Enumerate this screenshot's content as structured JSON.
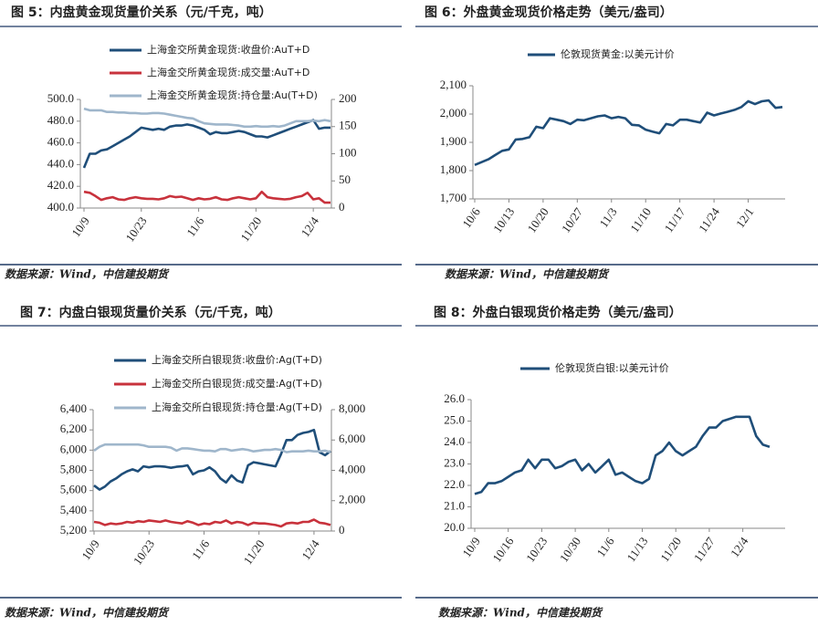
{
  "chart_data": [
    {
      "type": "line",
      "title": "图 5：内盘黄金现货量价关系（元/千克，吨）",
      "source": "数据来源：Wind，中信建投期货",
      "categories": [
        "10/9",
        null,
        null,
        null,
        null,
        null,
        null,
        null,
        null,
        null,
        "10/23",
        null,
        null,
        null,
        null,
        null,
        null,
        null,
        null,
        null,
        "11/6",
        null,
        null,
        null,
        null,
        null,
        null,
        null,
        null,
        null,
        "11/20",
        null,
        null,
        null,
        null,
        null,
        null,
        null,
        null,
        null,
        "12/4",
        null,
        null,
        null
      ],
      "series": [
        {
          "name": "上海金交所黄金现货:收盘价:AuT+D",
          "color": "#1f4e79",
          "axis": "y",
          "values": [
            437,
            450,
            450,
            453,
            454,
            457,
            460,
            463,
            466,
            470,
            474,
            473,
            472,
            473,
            472,
            475,
            476,
            476,
            477,
            476,
            474,
            472,
            468,
            470,
            469,
            469,
            470,
            471,
            470,
            468,
            466,
            466,
            465,
            467,
            469,
            471,
            473,
            475,
            477,
            479,
            481,
            473,
            474,
            474
          ]
        },
        {
          "name": "上海金交所黄金现货:成交量:AuT+D",
          "color": "#c8323c",
          "axis": "y2",
          "values": [
            30,
            28,
            22,
            15,
            18,
            20,
            16,
            15,
            18,
            20,
            18,
            17,
            17,
            16,
            18,
            22,
            20,
            21,
            18,
            15,
            18,
            16,
            17,
            20,
            16,
            15,
            18,
            20,
            18,
            16,
            18,
            30,
            20,
            18,
            17,
            16,
            17,
            20,
            22,
            28,
            16,
            18,
            10,
            10
          ]
        },
        {
          "name": "上海金交所黄金现货:持仓量:Au(T+D)",
          "color": "#9fb6cb",
          "axis": "y2",
          "values": [
            183,
            180,
            180,
            180,
            177,
            177,
            176,
            176,
            175,
            175,
            174,
            174,
            175,
            175,
            174,
            172,
            170,
            168,
            166,
            165,
            160,
            156,
            155,
            154,
            154,
            154,
            153,
            152,
            150,
            150,
            151,
            150,
            150,
            151,
            150,
            152,
            156,
            160,
            160,
            160,
            161,
            160,
            162,
            160
          ]
        }
      ],
      "ylim": [
        400,
        500
      ],
      "yticks": [
        {
          "value": 400,
          "label": "400.0"
        },
        {
          "value": 420,
          "label": "420.0"
        },
        {
          "value": 440,
          "label": "440.0"
        },
        {
          "value": 460,
          "label": "460.0"
        },
        {
          "value": 480,
          "label": "480.0"
        },
        {
          "value": 500,
          "label": "500.0"
        }
      ],
      "y2lim": [
        0,
        200
      ],
      "y2ticks": [
        0,
        50,
        100,
        150,
        200
      ]
    },
    {
      "type": "line",
      "title": "图 6：外盘黄金现货价格走势（美元/盎司）",
      "source": "数据来源：Wind，中信建投期货",
      "categories": [
        "10/6",
        null,
        null,
        null,
        null,
        "10/13",
        null,
        null,
        null,
        null,
        "10/20",
        null,
        null,
        null,
        null,
        "10/27",
        null,
        null,
        null,
        null,
        "11/3",
        null,
        null,
        null,
        null,
        "11/10",
        null,
        null,
        null,
        null,
        "11/17",
        null,
        null,
        null,
        null,
        "11/24",
        null,
        null,
        null,
        null,
        "12/1",
        null,
        null,
        null,
        null,
        null
      ],
      "series": [
        {
          "name": "伦敦现货黄金:以美元计价",
          "color": "#1f4e79",
          "values": [
            1820,
            1830,
            1840,
            1855,
            1870,
            1875,
            1910,
            1912,
            1918,
            1955,
            1950,
            1985,
            1980,
            1975,
            1965,
            1980,
            1978,
            1985,
            1992,
            1995,
            1985,
            1990,
            1985,
            1962,
            1960,
            1945,
            1938,
            1932,
            1965,
            1960,
            1980,
            1980,
            1975,
            1970,
            2005,
            1995,
            2002,
            2008,
            2015,
            2025,
            2045,
            2035,
            2045,
            2048,
            2022,
            2025
          ]
        }
      ],
      "ylim": [
        1700,
        2100
      ],
      "yticks": [
        {
          "value": 1700,
          "label": "1,700"
        },
        {
          "value": 1800,
          "label": "1,800"
        },
        {
          "value": 1900,
          "label": "1,900"
        },
        {
          "value": 2000,
          "label": "2,000"
        },
        {
          "value": 2100,
          "label": "2,100"
        }
      ]
    },
    {
      "type": "line",
      "title": "图 7：内盘白银现货量价关系（元/千克，吨）",
      "source": "数据来源：Wind，中信建投期货",
      "categories": [
        "10/9",
        null,
        null,
        null,
        null,
        null,
        null,
        null,
        null,
        null,
        "10/23",
        null,
        null,
        null,
        null,
        null,
        null,
        null,
        null,
        null,
        "11/6",
        null,
        null,
        null,
        null,
        null,
        null,
        null,
        null,
        null,
        "11/20",
        null,
        null,
        null,
        null,
        null,
        null,
        null,
        null,
        null,
        "12/4",
        null,
        null,
        null
      ],
      "series": [
        {
          "name": "上海金交所白银现货:收盘价:Ag(T+D)",
          "color": "#1f4e79",
          "axis": "y",
          "values": [
            5650,
            5610,
            5640,
            5690,
            5720,
            5760,
            5790,
            5810,
            5790,
            5840,
            5830,
            5840,
            5840,
            5835,
            5825,
            5835,
            5840,
            5850,
            5760,
            5790,
            5800,
            5830,
            5790,
            5720,
            5680,
            5750,
            5700,
            5680,
            5850,
            5880,
            5870,
            5860,
            5850,
            5840,
            5960,
            6100,
            6100,
            6150,
            6170,
            6180,
            6200,
            5980,
            5950,
            5990
          ]
        },
        {
          "name": "上海金交所白银现货:成交量:Ag(T+D)",
          "color": "#c8323c",
          "axis": "y2",
          "values": [
            600,
            550,
            400,
            500,
            450,
            500,
            600,
            550,
            650,
            600,
            700,
            650,
            600,
            700,
            600,
            550,
            500,
            650,
            550,
            400,
            500,
            450,
            600,
            550,
            700,
            500,
            600,
            550,
            400,
            550,
            500,
            500,
            450,
            400,
            300,
            500,
            550,
            500,
            600,
            600,
            750,
            550,
            500,
            400
          ]
        },
        {
          "name": "上海金交所白银现货:持仓量:Ag(T+D)",
          "color": "#9fb6cb",
          "axis": "y2",
          "values": [
            5300,
            5550,
            5700,
            5700,
            5700,
            5700,
            5700,
            5700,
            5700,
            5650,
            5550,
            5550,
            5550,
            5550,
            5500,
            5300,
            5450,
            5450,
            5400,
            5350,
            5300,
            5300,
            5250,
            5400,
            5400,
            5300,
            5350,
            5400,
            5350,
            5250,
            5300,
            5350,
            5350,
            5400,
            5350,
            5200,
            5250,
            5250,
            5250,
            5300,
            5250,
            5250,
            5300,
            5200
          ]
        }
      ],
      "ylim": [
        5200,
        6400
      ],
      "yticks": [
        {
          "value": 5200,
          "label": "5,200"
        },
        {
          "value": 5400,
          "label": "5,400"
        },
        {
          "value": 5600,
          "label": "5,600"
        },
        {
          "value": 5800,
          "label": "5,800"
        },
        {
          "value": 6000,
          "label": "6,000"
        },
        {
          "value": 6200,
          "label": "6,200"
        },
        {
          "value": 6400,
          "label": "6,400"
        }
      ],
      "y2lim": [
        0,
        8000
      ],
      "y2ticks": [
        0,
        {
          "value": 2000,
          "label": "2,000"
        },
        {
          "value": 4000,
          "label": "4,000"
        },
        {
          "value": 6000,
          "label": "6,000"
        },
        {
          "value": 8000,
          "label": "8,000"
        }
      ]
    },
    {
      "type": "line",
      "title": "图 8：外盘白银现货价格走势（美元/盎司）",
      "source": "数据来源：Wind，中信建投期货",
      "categories": [
        "10/9",
        null,
        null,
        null,
        null,
        "10/16",
        null,
        null,
        null,
        null,
        "10/23",
        null,
        null,
        null,
        null,
        "10/30",
        null,
        null,
        null,
        null,
        "11/6",
        null,
        null,
        null,
        null,
        "11/13",
        null,
        null,
        null,
        null,
        "11/20",
        null,
        null,
        null,
        null,
        "11/27",
        null,
        null,
        null,
        null,
        "12/4",
        null,
        null,
        null,
        null
      ],
      "series": [
        {
          "name": "伦敦现货白银:以美元计价",
          "color": "#1f4e79",
          "values": [
            21.6,
            21.7,
            22.1,
            22.1,
            22.2,
            22.4,
            22.6,
            22.7,
            23.2,
            22.8,
            23.2,
            23.2,
            22.8,
            22.9,
            23.1,
            23.2,
            22.7,
            23.0,
            22.6,
            22.9,
            23.2,
            22.5,
            22.6,
            22.4,
            22.2,
            22.1,
            22.3,
            23.4,
            23.6,
            24.0,
            23.6,
            23.4,
            23.6,
            23.8,
            24.3,
            24.7,
            24.7,
            25.0,
            25.1,
            25.2,
            25.2,
            25.2,
            24.3,
            23.9,
            23.8
          ]
        }
      ],
      "ylim": [
        20,
        26
      ],
      "yticks": [
        {
          "value": 20,
          "label": "20.0"
        },
        {
          "value": 21,
          "label": "21.0"
        },
        {
          "value": 22,
          "label": "22.0"
        },
        {
          "value": 23,
          "label": "23.0"
        },
        {
          "value": 24,
          "label": "24.0"
        },
        {
          "value": 25,
          "label": "25.0"
        },
        {
          "value": 26,
          "label": "26.0"
        }
      ]
    }
  ]
}
